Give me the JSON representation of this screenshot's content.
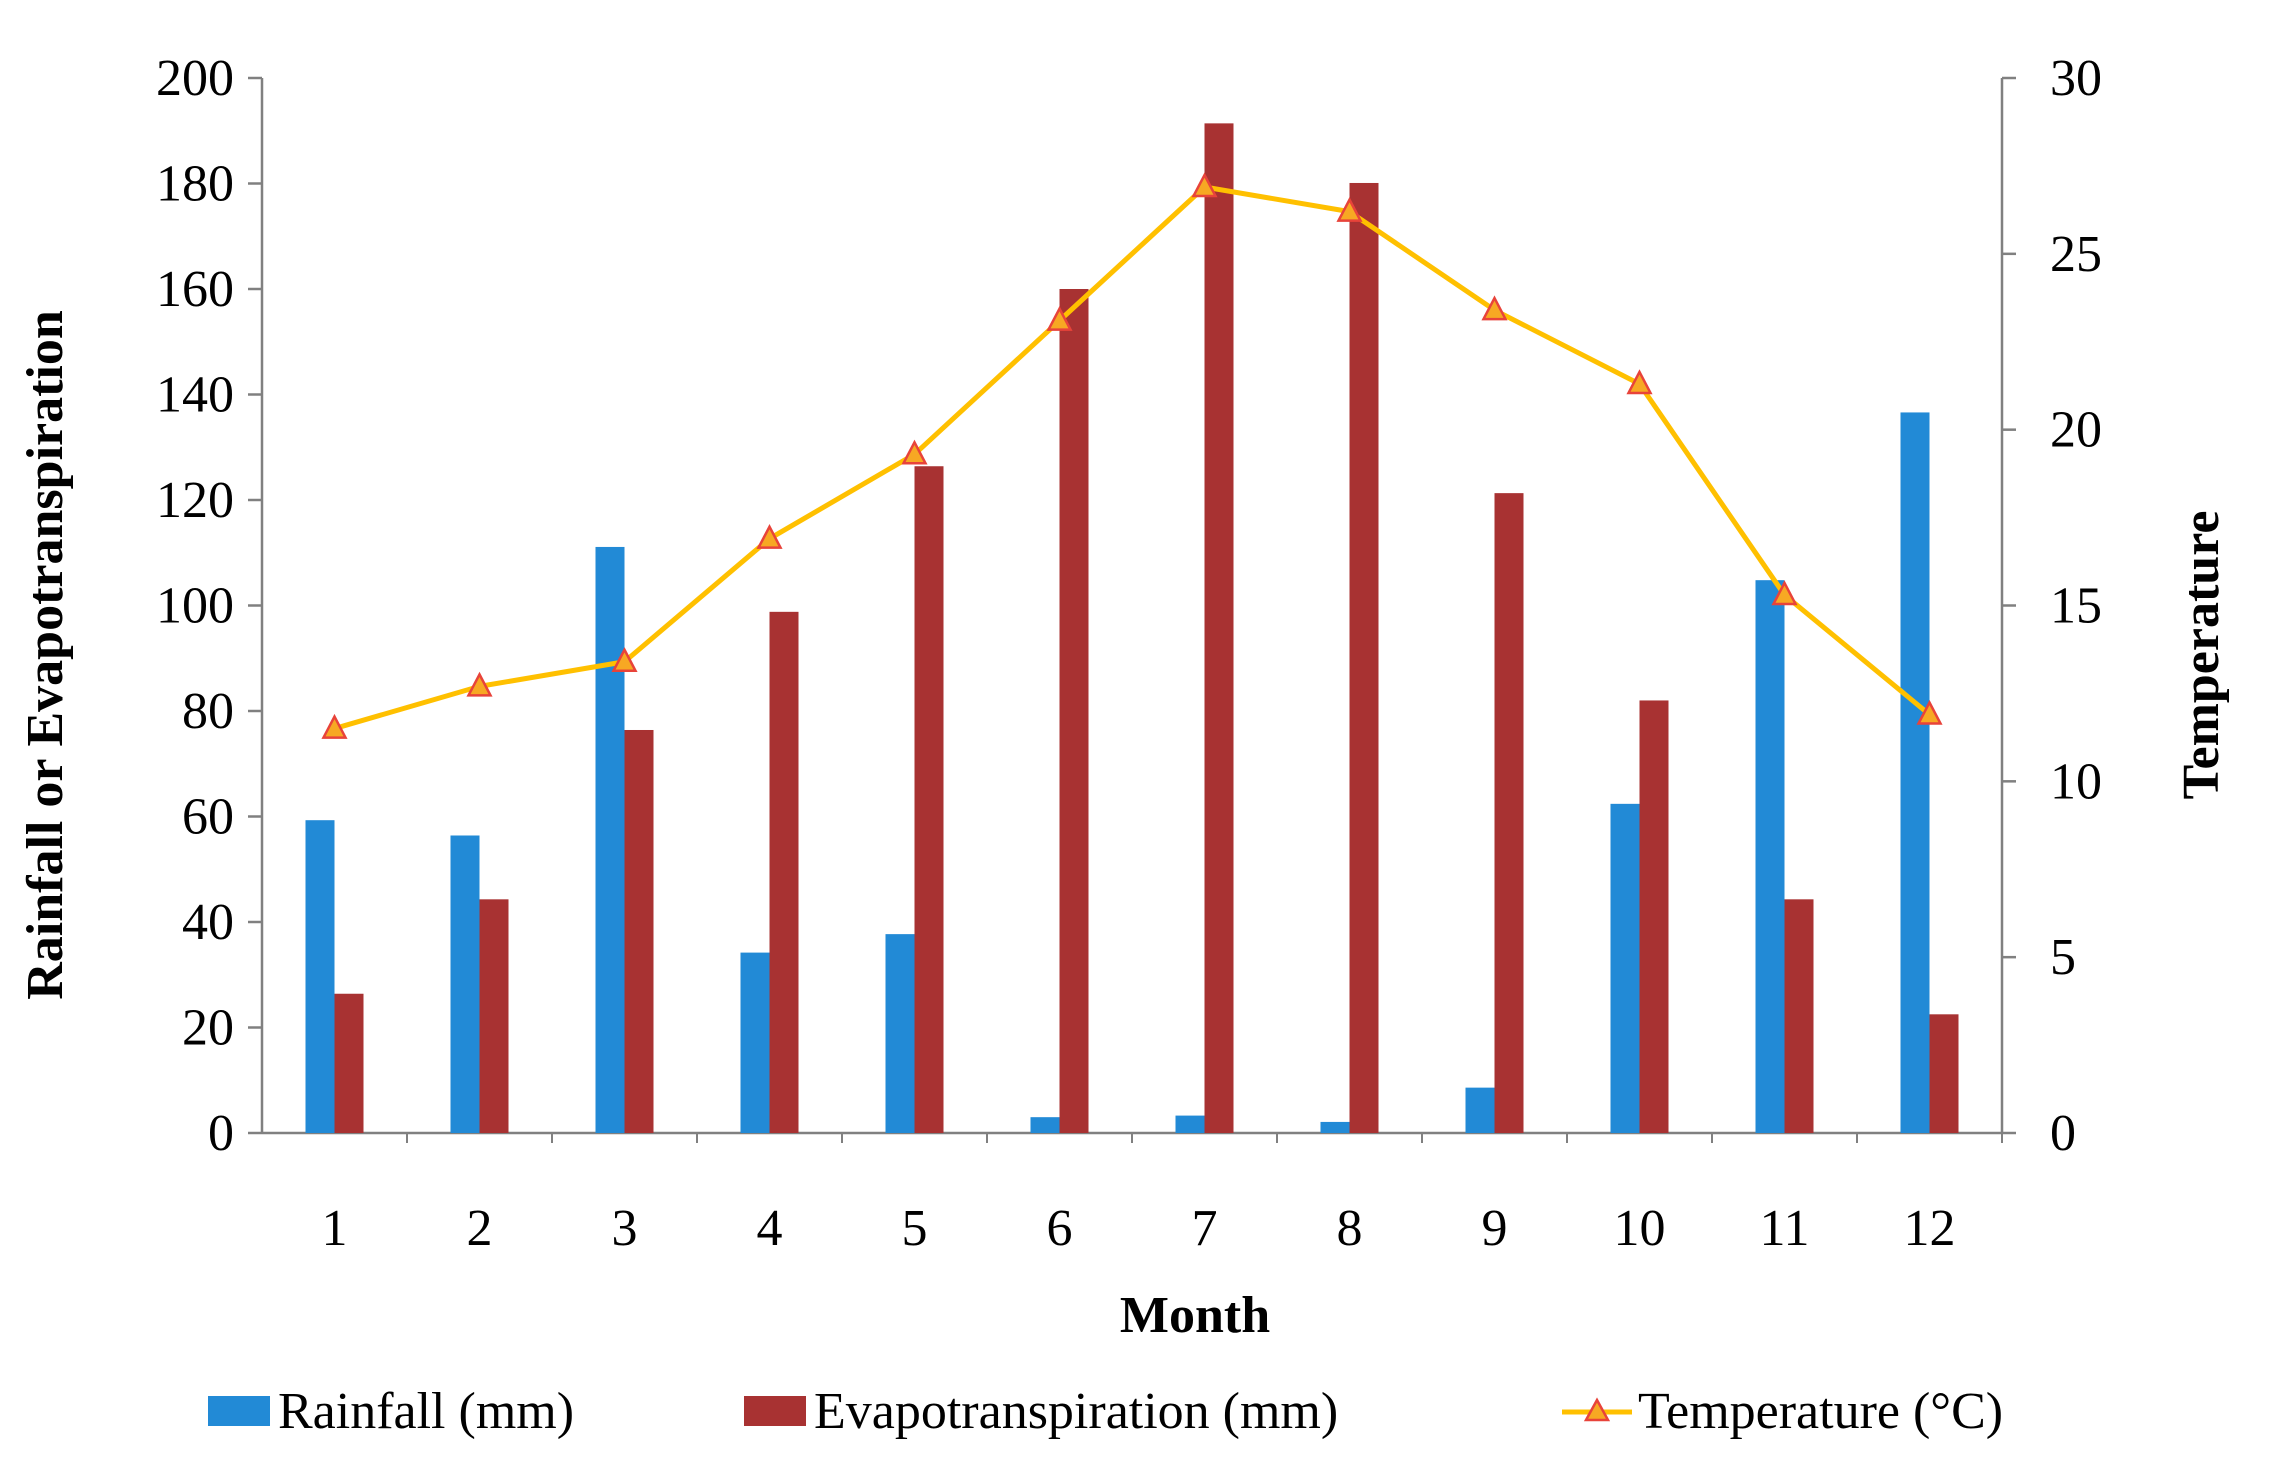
{
  "chart_data": {
    "type": "bar",
    "categories": [
      "1",
      "2",
      "3",
      "4",
      "5",
      "6",
      "7",
      "8",
      "9",
      "10",
      "11",
      "12"
    ],
    "series": [
      {
        "name": "Rainfall (mm)",
        "kind": "bar",
        "axis": "left",
        "color": "#228ad6",
        "values": [
          59.3,
          56.4,
          111.1,
          34.2,
          37.7,
          3.0,
          3.3,
          2.1,
          8.6,
          62.4,
          104.8,
          136.6
        ]
      },
      {
        "name": "Evapotranspiration (mm)",
        "kind": "bar",
        "axis": "left",
        "color": "#a83232",
        "values": [
          26.4,
          44.3,
          76.4,
          98.8,
          126.4,
          160.0,
          191.4,
          180.1,
          121.3,
          82.0,
          44.3,
          22.5
        ]
      },
      {
        "name": "Temperature (°C)",
        "kind": "line",
        "axis": "right",
        "color": "#ffc000",
        "marker_color": "#e8433a",
        "values": [
          11.5,
          12.7,
          13.4,
          16.9,
          19.3,
          23.1,
          26.9,
          26.2,
          23.4,
          21.3,
          15.3,
          11.9
        ]
      }
    ],
    "xlabel": "Month",
    "ylabel": "Rainfall or Evapotranspiration",
    "y2label": "Temperature",
    "ylim": [
      0,
      200
    ],
    "yticks": [
      "0",
      "20",
      "40",
      "60",
      "80",
      "100",
      "120",
      "140",
      "160",
      "180",
      "200"
    ],
    "y2lim": [
      0,
      30
    ],
    "y2ticks": [
      "0",
      "5",
      "10",
      "15",
      "20",
      "25",
      "30"
    ],
    "legend_position": "bottom",
    "grid": false
  }
}
